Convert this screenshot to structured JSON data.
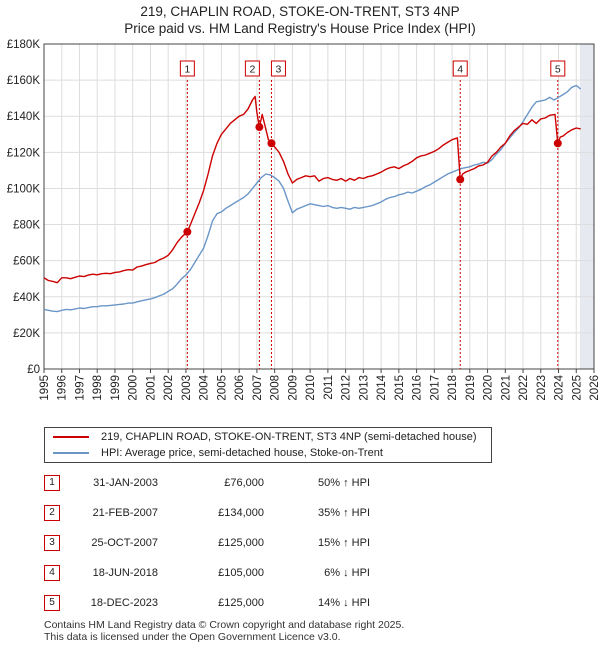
{
  "header": {
    "title": "219, CHAPLIN ROAD, STOKE-ON-TRENT, ST3 4NP",
    "subtitle": "Price paid vs. HM Land Registry's House Price Index (HPI)"
  },
  "chart_data": {
    "type": "line",
    "title": "219, CHAPLIN ROAD, STOKE-ON-TRENT, ST3 4NP",
    "subtitle": "Price paid vs. HM Land Registry's House Price Index (HPI)",
    "xlabel": "",
    "ylabel": "",
    "xlim": [
      1995,
      2026
    ],
    "ylim": [
      0,
      180000
    ],
    "y_ticks": [
      {
        "value": 0,
        "label": "£0"
      },
      {
        "value": 20000,
        "label": "£20K"
      },
      {
        "value": 40000,
        "label": "£40K"
      },
      {
        "value": 60000,
        "label": "£60K"
      },
      {
        "value": 80000,
        "label": "£80K"
      },
      {
        "value": 100000,
        "label": "£100K"
      },
      {
        "value": 120000,
        "label": "£120K"
      },
      {
        "value": 140000,
        "label": "£140K"
      },
      {
        "value": 160000,
        "label": "£160K"
      },
      {
        "value": 180000,
        "label": "£180K"
      }
    ],
    "x_ticks": [
      "1995",
      "1996",
      "1997",
      "1998",
      "1999",
      "2000",
      "2001",
      "2002",
      "2003",
      "2004",
      "2005",
      "2006",
      "2007",
      "2008",
      "2009",
      "2010",
      "2011",
      "2012",
      "2013",
      "2014",
      "2015",
      "2016",
      "2017",
      "2018",
      "2019",
      "2020",
      "2021",
      "2022",
      "2023",
      "2024",
      "2025",
      "2026"
    ],
    "grid": true,
    "forecast_shade_from": 2025.2,
    "series": [
      {
        "name": "219, CHAPLIN ROAD, STOKE-ON-TRENT, ST3 4NP (semi-detached house)",
        "color": "#cc0000",
        "x": [
          1995.0,
          1995.25,
          1995.5,
          1995.75,
          1996.0,
          1996.25,
          1996.5,
          1996.75,
          1997.0,
          1997.25,
          1997.5,
          1997.75,
          1998.0,
          1998.25,
          1998.5,
          1998.75,
          1999.0,
          1999.25,
          1999.5,
          1999.75,
          2000.0,
          2000.25,
          2000.5,
          2000.75,
          2001.0,
          2001.25,
          2001.5,
          2001.75,
          2002.0,
          2002.25,
          2002.5,
          2002.75,
          2003.08,
          2003.25,
          2003.5,
          2003.75,
          2004.0,
          2004.25,
          2004.5,
          2004.75,
          2005.0,
          2005.25,
          2005.5,
          2005.75,
          2006.0,
          2006.25,
          2006.5,
          2006.75,
          2006.9,
          2007.0,
          2007.14,
          2007.3,
          2007.5,
          2007.65,
          2007.82,
          2008.0,
          2008.25,
          2008.5,
          2008.75,
          2009.0,
          2009.25,
          2009.5,
          2009.75,
          2010.0,
          2010.25,
          2010.5,
          2010.75,
          2011.0,
          2011.25,
          2011.5,
          2011.75,
          2012.0,
          2012.25,
          2012.5,
          2012.75,
          2013.0,
          2013.25,
          2013.5,
          2013.75,
          2014.0,
          2014.25,
          2014.5,
          2014.75,
          2015.0,
          2015.25,
          2015.5,
          2015.75,
          2016.0,
          2016.25,
          2016.5,
          2016.75,
          2017.0,
          2017.25,
          2017.5,
          2017.75,
          2018.0,
          2018.3,
          2018.46,
          2018.6,
          2018.75,
          2019.0,
          2019.25,
          2019.5,
          2019.75,
          2020.0,
          2020.25,
          2020.5,
          2020.75,
          2021.0,
          2021.25,
          2021.5,
          2021.75,
          2022.0,
          2022.25,
          2022.5,
          2022.75,
          2023.0,
          2023.25,
          2023.5,
          2023.8,
          2023.96,
          2024.1,
          2024.25,
          2024.5,
          2024.75,
          2025.0,
          2025.25
        ],
        "values": [
          50500,
          49000,
          48500,
          47800,
          50500,
          50500,
          50000,
          50800,
          51500,
          51200,
          52000,
          52500,
          52200,
          52800,
          53000,
          52800,
          53500,
          53800,
          54500,
          55000,
          54800,
          56500,
          57000,
          57800,
          58500,
          59000,
          60500,
          61500,
          63000,
          66000,
          70000,
          73000,
          76000,
          80000,
          86000,
          92000,
          99000,
          108000,
          118000,
          125000,
          130000,
          133000,
          136000,
          138000,
          140000,
          141000,
          144000,
          149000,
          151000,
          142000,
          134000,
          141000,
          133000,
          127000,
          125000,
          123000,
          120000,
          115000,
          108000,
          103000,
          105000,
          106000,
          107000,
          106500,
          107000,
          104000,
          105500,
          106000,
          105000,
          104500,
          105500,
          104000,
          105500,
          104500,
          106000,
          105500,
          106500,
          107000,
          108000,
          109000,
          110500,
          111500,
          112000,
          111000,
          112500,
          113500,
          115000,
          117000,
          118000,
          118500,
          119500,
          120500,
          122000,
          124000,
          125500,
          127000,
          128000,
          105000,
          108000,
          109000,
          110000,
          111000,
          112500,
          113000,
          114500,
          118000,
          120000,
          123000,
          125000,
          129000,
          132000,
          134000,
          136000,
          135500,
          138000,
          136000,
          138500,
          139000,
          140500,
          141000,
          125000,
          128500,
          129000,
          131000,
          132500,
          133500,
          133000
        ]
      },
      {
        "name": "HPI: Average price, semi-detached house, Stoke-on-Trent",
        "color": "#6a96c8",
        "x": [
          1995.0,
          1995.25,
          1995.5,
          1995.75,
          1996.0,
          1996.25,
          1996.5,
          1996.75,
          1997.0,
          1997.25,
          1997.5,
          1997.75,
          1998.0,
          1998.25,
          1998.5,
          1998.75,
          1999.0,
          1999.25,
          1999.5,
          1999.75,
          2000.0,
          2000.25,
          2000.5,
          2000.75,
          2001.0,
          2001.25,
          2001.5,
          2001.75,
          2002.0,
          2002.25,
          2002.5,
          2002.75,
          2003.0,
          2003.25,
          2003.5,
          2003.75,
          2004.0,
          2004.25,
          2004.5,
          2004.75,
          2005.0,
          2005.25,
          2005.5,
          2005.75,
          2006.0,
          2006.25,
          2006.5,
          2006.75,
          2007.0,
          2007.25,
          2007.5,
          2007.75,
          2008.0,
          2008.25,
          2008.5,
          2008.75,
          2009.0,
          2009.25,
          2009.5,
          2009.75,
          2010.0,
          2010.25,
          2010.5,
          2010.75,
          2011.0,
          2011.25,
          2011.5,
          2011.75,
          2012.0,
          2012.25,
          2012.5,
          2012.75,
          2013.0,
          2013.25,
          2013.5,
          2013.75,
          2014.0,
          2014.25,
          2014.5,
          2014.75,
          2015.0,
          2015.25,
          2015.5,
          2015.75,
          2016.0,
          2016.25,
          2016.5,
          2016.75,
          2017.0,
          2017.25,
          2017.5,
          2017.75,
          2018.0,
          2018.25,
          2018.5,
          2018.75,
          2019.0,
          2019.25,
          2019.5,
          2019.75,
          2020.0,
          2020.25,
          2020.5,
          2020.75,
          2021.0,
          2021.25,
          2021.5,
          2021.75,
          2022.0,
          2022.25,
          2022.5,
          2022.75,
          2023.0,
          2023.25,
          2023.5,
          2023.75,
          2024.0,
          2024.25,
          2024.5,
          2024.75,
          2025.0,
          2025.25
        ],
        "values": [
          33000,
          32500,
          32000,
          31800,
          32500,
          33000,
          32800,
          33200,
          33800,
          33500,
          34000,
          34500,
          34500,
          35000,
          35000,
          35200,
          35500,
          35800,
          36000,
          36500,
          36500,
          37200,
          37800,
          38300,
          38800,
          39500,
          40500,
          41500,
          43000,
          44500,
          47000,
          50000,
          52000,
          55000,
          59000,
          63000,
          67000,
          74000,
          82000,
          86000,
          87000,
          89000,
          90500,
          92000,
          93500,
          95000,
          97000,
          100000,
          103000,
          106000,
          108000,
          107500,
          106000,
          104000,
          100000,
          93000,
          86500,
          88500,
          89500,
          90500,
          91500,
          91000,
          90500,
          90000,
          90500,
          89500,
          89000,
          89500,
          89000,
          88500,
          89500,
          89000,
          89500,
          90000,
          90500,
          91500,
          92500,
          94000,
          95000,
          95500,
          96500,
          97000,
          98000,
          97500,
          98500,
          99500,
          101000,
          102000,
          103500,
          105000,
          106500,
          108000,
          109000,
          110000,
          111000,
          111500,
          112000,
          113000,
          113500,
          114500,
          114000,
          116000,
          119000,
          121500,
          125000,
          128000,
          131000,
          133500,
          137000,
          141000,
          145000,
          148000,
          148500,
          149000,
          150500,
          149000,
          150500,
          152000,
          153500,
          156000,
          157000,
          155000
        ]
      }
    ],
    "sales": [
      {
        "num": "1",
        "x": 2003.08,
        "value": 76000
      },
      {
        "num": "2",
        "x": 2007.14,
        "value": 134000
      },
      {
        "num": "3",
        "x": 2007.82,
        "value": 125000
      },
      {
        "num": "4",
        "x": 2018.46,
        "value": 105000
      },
      {
        "num": "5",
        "x": 2023.96,
        "value": 125000
      }
    ]
  },
  "legend": {
    "items": [
      {
        "label": "219, CHAPLIN ROAD, STOKE-ON-TRENT, ST3 4NP (semi-detached house)",
        "color": "#cc0000"
      },
      {
        "label": "HPI: Average price, semi-detached house, Stoke-on-Trent",
        "color": "#6a96c8"
      }
    ]
  },
  "sales_table": [
    {
      "num": "1",
      "date": "31-JAN-2003",
      "price": "£76,000",
      "hpi": "50% ↑ HPI"
    },
    {
      "num": "2",
      "date": "21-FEB-2007",
      "price": "£134,000",
      "hpi": "35% ↑ HPI"
    },
    {
      "num": "3",
      "date": "25-OCT-2007",
      "price": "£125,000",
      "hpi": "15% ↑ HPI"
    },
    {
      "num": "4",
      "date": "18-JUN-2018",
      "price": "£105,000",
      "hpi": "6% ↓ HPI"
    },
    {
      "num": "5",
      "date": "18-DEC-2023",
      "price": "£125,000",
      "hpi": "14% ↓ HPI"
    }
  ],
  "footer": {
    "line1": "Contains HM Land Registry data © Crown copyright and database right 2025.",
    "line2": "This data is licensed under the Open Government Licence v3.0."
  }
}
